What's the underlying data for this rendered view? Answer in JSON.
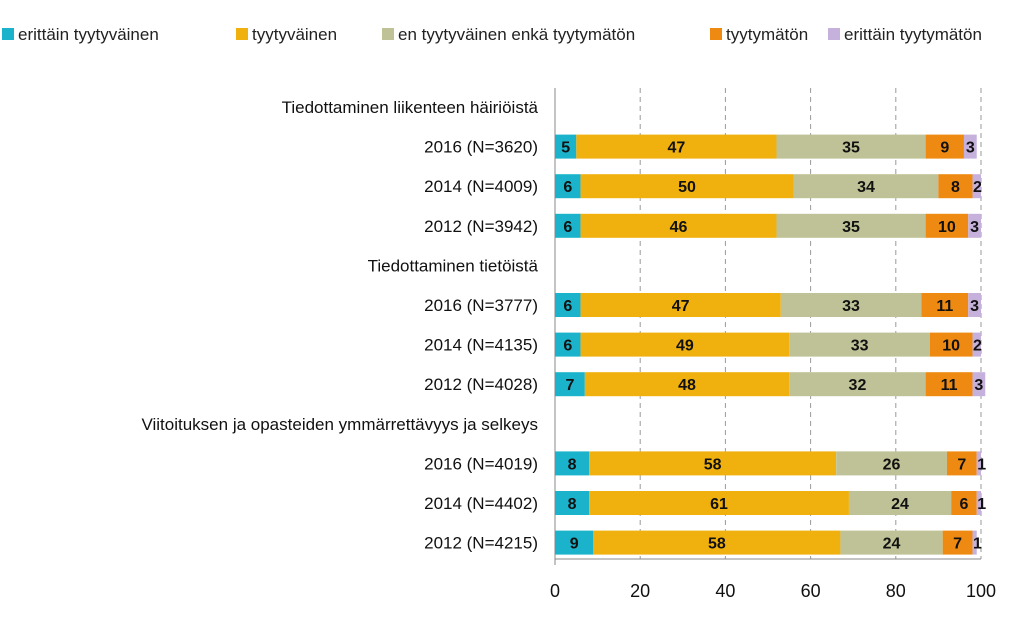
{
  "chart_data": {
    "type": "bar",
    "orientation": "horizontal",
    "stacked": true,
    "title": "",
    "xlabel": "",
    "ylabel": "",
    "xlim": [
      0,
      100
    ],
    "xticks": [
      0,
      20,
      40,
      60,
      80,
      100
    ],
    "grid": "vertical-dashed",
    "legend_position": "top",
    "legend": [
      {
        "name": "erittäin tyytyväinen",
        "color": "#1BB3CB"
      },
      {
        "name": "tyytyväinen",
        "color": "#F0B10F"
      },
      {
        "name": "en tyytyväinen enkä tyytymätön",
        "color": "#BFC296"
      },
      {
        "name": "tyytymätön",
        "color": "#EE8A12"
      },
      {
        "name": "erittäin tyytymätön",
        "color": "#C6B0DC"
      }
    ],
    "rows": [
      {
        "label": "Tiedottaminen liikenteen häiriöistä",
        "heading": true
      },
      {
        "label": "2016 (N=3620)",
        "values": [
          5,
          47,
          35,
          9,
          3
        ]
      },
      {
        "label": "2014 (N=4009)",
        "values": [
          6,
          50,
          34,
          8,
          2
        ]
      },
      {
        "label": "2012 (N=3942)",
        "values": [
          6,
          46,
          35,
          10,
          3
        ]
      },
      {
        "label": "Tiedottaminen tietöistä",
        "heading": true
      },
      {
        "label": "2016 (N=3777)",
        "values": [
          6,
          47,
          33,
          11,
          3
        ]
      },
      {
        "label": "2014 (N=4135)",
        "values": [
          6,
          49,
          33,
          10,
          2
        ]
      },
      {
        "label": "2012 (N=4028)",
        "values": [
          7,
          48,
          32,
          11,
          3
        ]
      },
      {
        "label": "Viitoituksen ja opasteiden ymmärrettävyys ja selkeys",
        "heading": true
      },
      {
        "label": "2016 (N=4019)",
        "values": [
          8,
          58,
          26,
          7,
          1
        ]
      },
      {
        "label": "2014 (N=4402)",
        "values": [
          8,
          61,
          24,
          6,
          1
        ]
      },
      {
        "label": "2012 (N=4215)",
        "values": [
          9,
          58,
          24,
          7,
          1
        ]
      }
    ]
  }
}
